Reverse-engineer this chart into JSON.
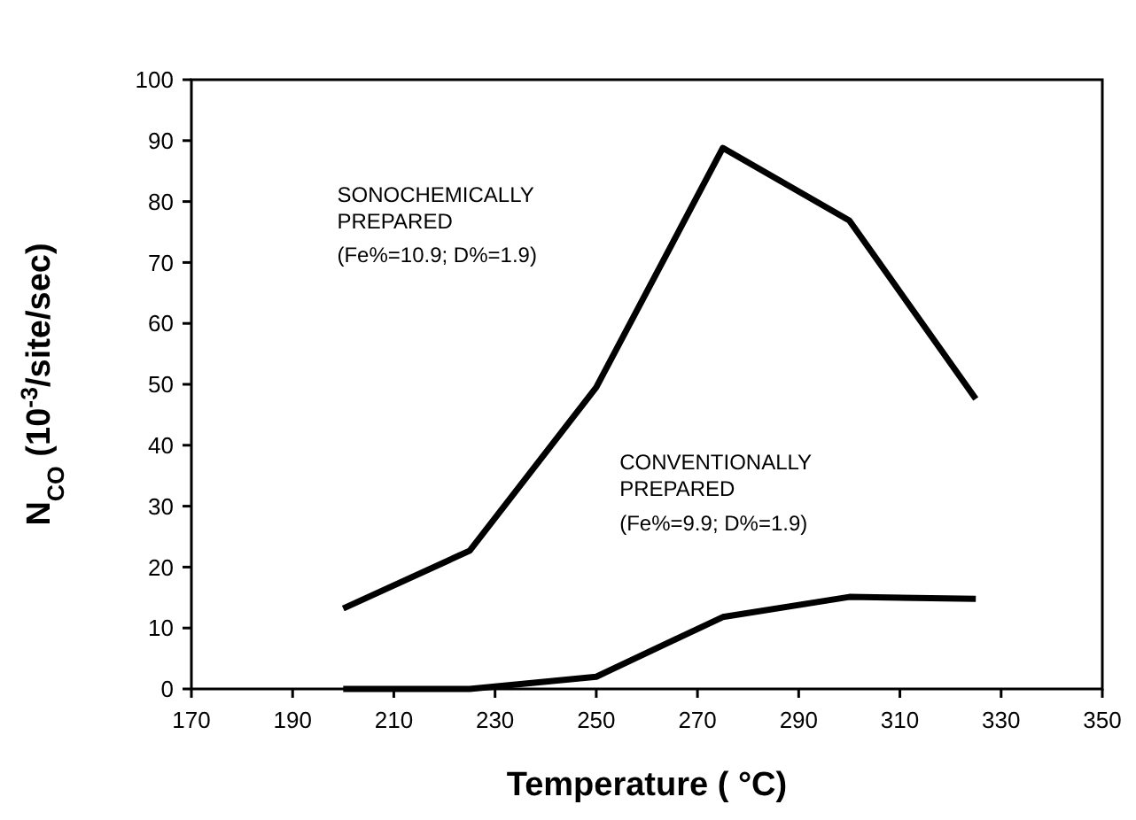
{
  "chart_data": {
    "type": "line",
    "xlabel": "Temperature ( °C)",
    "ylabel": "N$_{CO}$  (10$^{-3}$/site/sec)",
    "x": [
      200,
      225,
      250,
      275,
      300,
      325
    ],
    "series": [
      {
        "color": "#000000",
        "values": [
          13.2,
          22.7,
          49.5,
          88.8,
          76.9,
          47.6
        ]
      },
      {
        "color": "#000000",
        "values": [
          0,
          0,
          2,
          11.8,
          15.1,
          14.8
        ]
      }
    ],
    "xlim": [
      170,
      350
    ],
    "xticks": [
      170,
      190,
      210,
      230,
      250,
      270,
      290,
      310,
      330,
      350
    ],
    "ylim": [
      0,
      100
    ],
    "yticks": [
      0,
      10,
      20,
      30,
      40,
      50,
      60,
      70,
      80,
      90,
      100
    ],
    "grid": false,
    "annotations": [
      "SONOCHEMICALLY\nPREPARED",
      "(Fe%=10.9; D%=1.9)",
      "CONVENTIONALLY\nPREPARED",
      "(Fe%=9.9; D%=1.9)"
    ]
  }
}
